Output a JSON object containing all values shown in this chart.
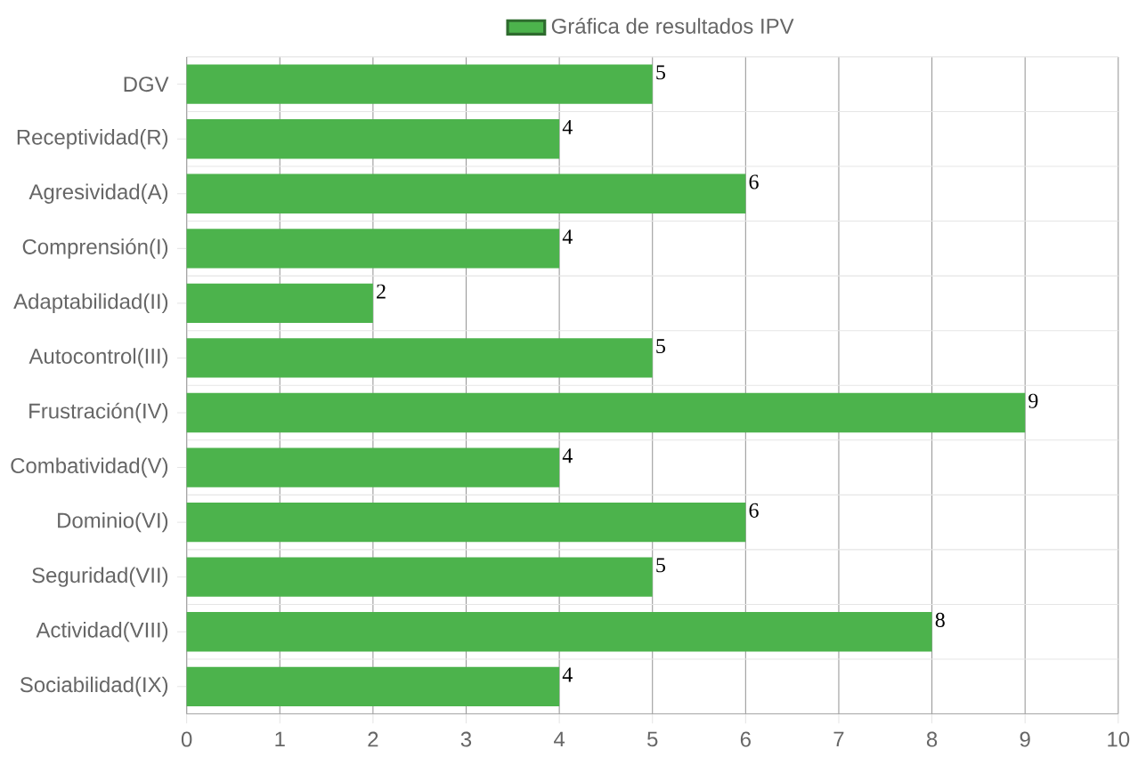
{
  "chart_data": {
    "type": "bar",
    "orientation": "horizontal",
    "categories": [
      "DGV",
      "Receptividad(R)",
      "Agresividad(A)",
      "Comprensión(I)",
      "Adaptabilidad(II)",
      "Autocontrol(III)",
      "Frustración(IV)",
      "Combatividad(V)",
      "Dominio(VI)",
      "Seguridad(VII)",
      "Actividad(VIII)",
      "Sociabilidad(IX)"
    ],
    "series": [
      {
        "name": "Gráfica de resultados IPV",
        "color": "#4cb34c",
        "values": [
          5,
          4,
          6,
          4,
          2,
          5,
          9,
          4,
          6,
          5,
          8,
          4
        ]
      }
    ],
    "xlim": [
      0,
      10
    ],
    "xticks": [
      0,
      1,
      2,
      3,
      4,
      5,
      6,
      7,
      8,
      9,
      10
    ],
    "grid": true,
    "legend": "top",
    "data_labels": true
  }
}
